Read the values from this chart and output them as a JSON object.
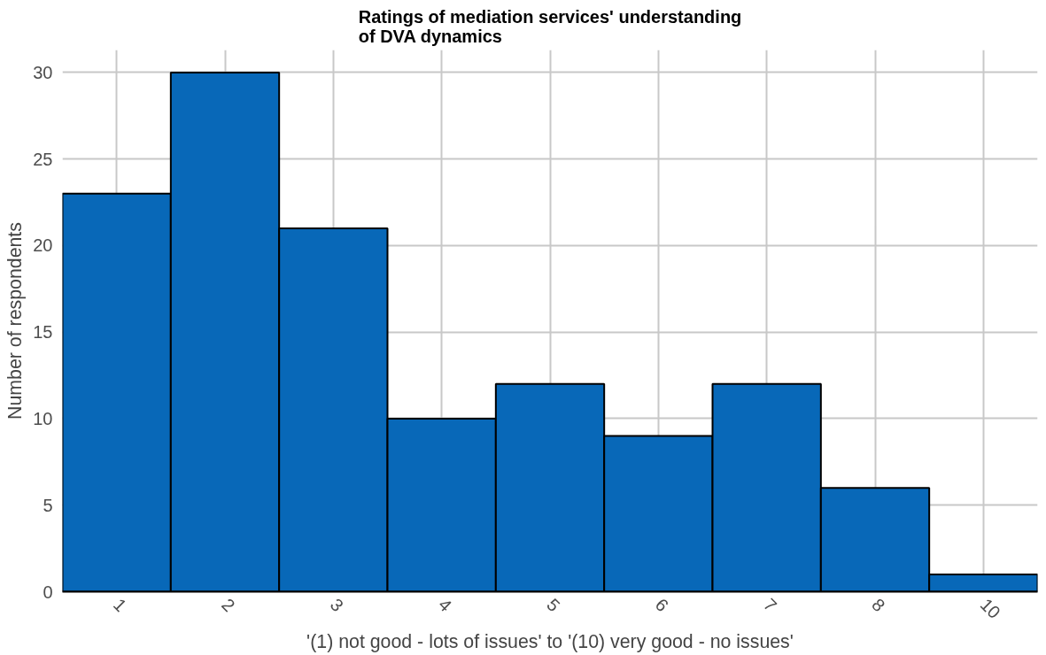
{
  "chart_data": {
    "type": "bar",
    "title": "Ratings of mediation services' understanding\nof DVA dynamics",
    "xlabel": "'(1) not good - lots of issues' to '(10) very good - no issues'",
    "ylabel": "Number of respondents",
    "categories": [
      "1",
      "2",
      "3",
      "4",
      "5",
      "6",
      "7",
      "8",
      "10"
    ],
    "values": [
      23,
      30,
      21,
      10,
      12,
      9,
      12,
      6,
      1
    ],
    "color": "#0868b8",
    "ylim": [
      0,
      31.3
    ],
    "yticks": [
      0,
      5,
      10,
      15,
      20,
      25,
      30
    ],
    "grid": true
  }
}
